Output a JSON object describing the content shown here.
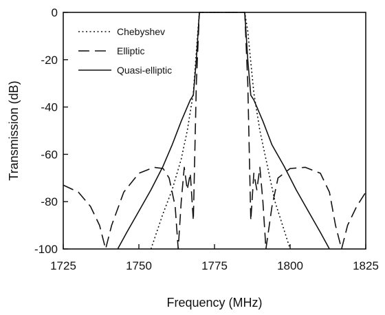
{
  "chart_data": {
    "type": "line",
    "title": "",
    "xlabel": "Frequency (MHz)",
    "ylabel": "Transmission (dB)",
    "xlim": [
      1725,
      1825
    ],
    "ylim": [
      -100,
      0
    ],
    "xticks": [
      1725,
      1750,
      1775,
      1800,
      1825
    ],
    "yticks": [
      0,
      -20,
      -40,
      -60,
      -80,
      -100
    ],
    "grid": false,
    "legend_position": "top-left",
    "series": [
      {
        "name": "Chebyshev",
        "style": "dotted",
        "x": [
          1754,
          1758,
          1761,
          1764,
          1766,
          1768,
          1769.5,
          1770,
          1780,
          1785,
          1786,
          1788,
          1790,
          1792,
          1795,
          1800
        ],
        "y": [
          -100,
          -85,
          -75,
          -62,
          -50,
          -34,
          -8,
          0,
          0,
          0,
          -8,
          -34,
          -50,
          -62,
          -80,
          -100
        ]
      },
      {
        "name": "Elliptic",
        "style": "dashed",
        "x": [
          1725,
          1730,
          1734,
          1737,
          1739,
          1741,
          1745,
          1750,
          1755,
          1758,
          1760,
          1762,
          1763,
          1764,
          1765,
          1766,
          1767,
          1768,
          1769,
          1770,
          1780,
          1785,
          1786,
          1787,
          1788,
          1789,
          1790,
          1791,
          1792,
          1794,
          1796,
          1800,
          1805,
          1810,
          1813,
          1815,
          1817,
          1819,
          1822,
          1825
        ],
        "y": [
          -73,
          -76,
          -82,
          -90,
          -100,
          -90,
          -76,
          -68,
          -65.5,
          -66,
          -70,
          -82,
          -100,
          -80,
          -65.5,
          -75,
          -68,
          -88,
          -30,
          0,
          0,
          0,
          -30,
          -88,
          -68,
          -75,
          -65.5,
          -80,
          -100,
          -82,
          -70,
          -66,
          -65.5,
          -68,
          -76,
          -90,
          -100,
          -90,
          -82,
          -76
        ]
      },
      {
        "name": "Quasi-elliptic",
        "style": "solid",
        "x": [
          1743,
          1746,
          1750,
          1754,
          1758,
          1761,
          1764,
          1766,
          1767,
          1768,
          1769,
          1770,
          1780,
          1785,
          1786,
          1787,
          1788,
          1789,
          1791,
          1794,
          1798,
          1802,
          1806,
          1810,
          1813
        ],
        "y": [
          -100,
          -93,
          -84,
          -75,
          -65,
          -56,
          -46,
          -40,
          -37,
          -35,
          -20,
          0,
          0,
          0,
          -20,
          -35,
          -37,
          -40,
          -46,
          -56,
          -65,
          -75,
          -84,
          -93,
          -100
        ]
      }
    ]
  }
}
